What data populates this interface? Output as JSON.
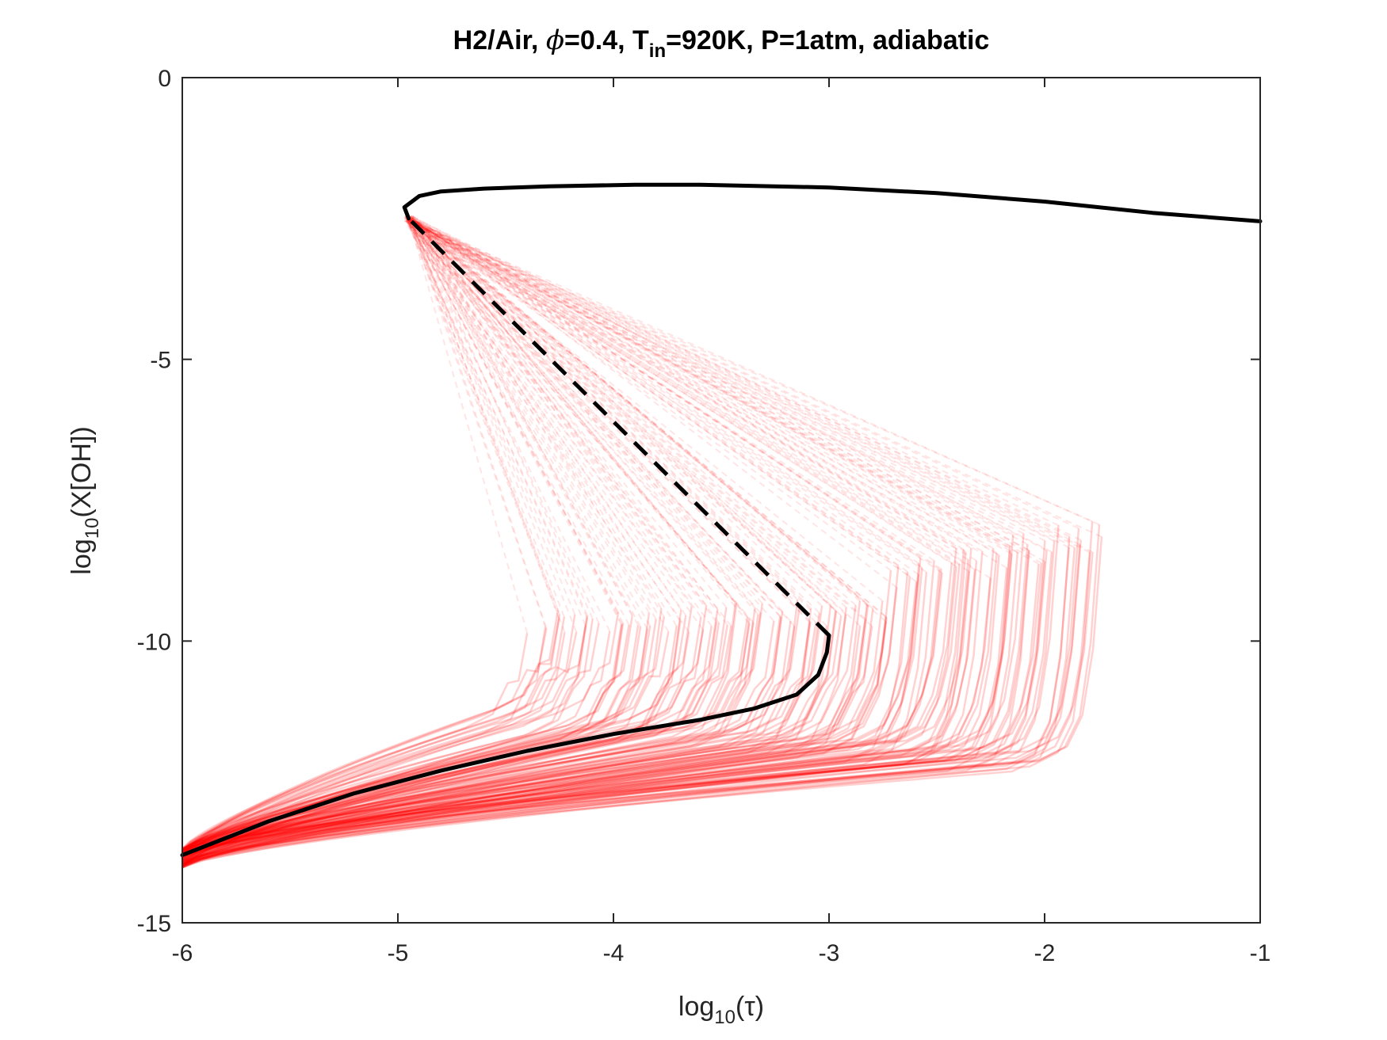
{
  "chart_data": {
    "type": "line",
    "title": "H2/Air, ϕ=0.4, T_in=920K, P=1atm, adiabatic",
    "title_parts": {
      "prefix": "H2/Air, ",
      "phi": "ϕ",
      "phi_value": "=0.4, T",
      "t_sub": "in",
      "suffix": "=920K, P=1atm, adiabatic"
    },
    "xlabel": "log10(τ)",
    "xlabel_parts": {
      "base": "log",
      "sub": "10",
      "arg": "(τ)"
    },
    "ylabel": "log10(X[OH])",
    "ylabel_parts": {
      "base": "log",
      "sub": "10",
      "arg": "(X[OH])"
    },
    "xlim": [
      -6,
      -1
    ],
    "ylim": [
      -15,
      0
    ],
    "xticks": [
      "-6",
      "-5",
      "-4",
      "-3",
      "-2",
      "-1"
    ],
    "xtick_values": [
      -6,
      -5,
      -4,
      -3,
      -2,
      -1
    ],
    "yticks": [
      "0",
      "-5",
      "-10",
      "-15"
    ],
    "ytick_values": [
      0,
      -5,
      -10,
      -15
    ],
    "grid": false,
    "box": true,
    "colors": {
      "nominal": "#000000",
      "samples": "#ff0000"
    },
    "series": [
      {
        "style": "solid",
        "color": "#000000",
        "x": [
          -6.0,
          -5.6,
          -5.2,
          -4.8,
          -4.4,
          -4.0,
          -3.6,
          -3.35,
          -3.15,
          -3.05,
          -3.01,
          -3.0
        ],
        "y": [
          -13.8,
          -13.2,
          -12.7,
          -12.3,
          -11.95,
          -11.65,
          -11.4,
          -11.2,
          -10.95,
          -10.6,
          -10.2,
          -9.9
        ]
      },
      {
        "style": "dashed",
        "color": "#000000",
        "x": [
          -3.0,
          -4.95
        ],
        "y": [
          -9.9,
          -2.5
        ]
      },
      {
        "style": "solid",
        "color": "#000000",
        "x": [
          -4.95,
          -4.97,
          -4.9,
          -4.8,
          -4.6,
          -4.3,
          -3.9,
          -3.6,
          -3.0,
          -2.5,
          -2.0,
          -1.5,
          -1.0
        ],
        "y": [
          -2.5,
          -2.3,
          -2.1,
          -2.02,
          -1.97,
          -1.93,
          -1.9,
          -1.9,
          -1.95,
          -2.05,
          -2.2,
          -2.4,
          -2.55
        ]
      }
    ],
    "sample_family": {
      "count": 150,
      "color": "#ff0000",
      "description_x_range": [
        -4.4,
        -1.75
      ],
      "description_y_range": [
        -12.3,
        -8.2
      ]
    }
  }
}
